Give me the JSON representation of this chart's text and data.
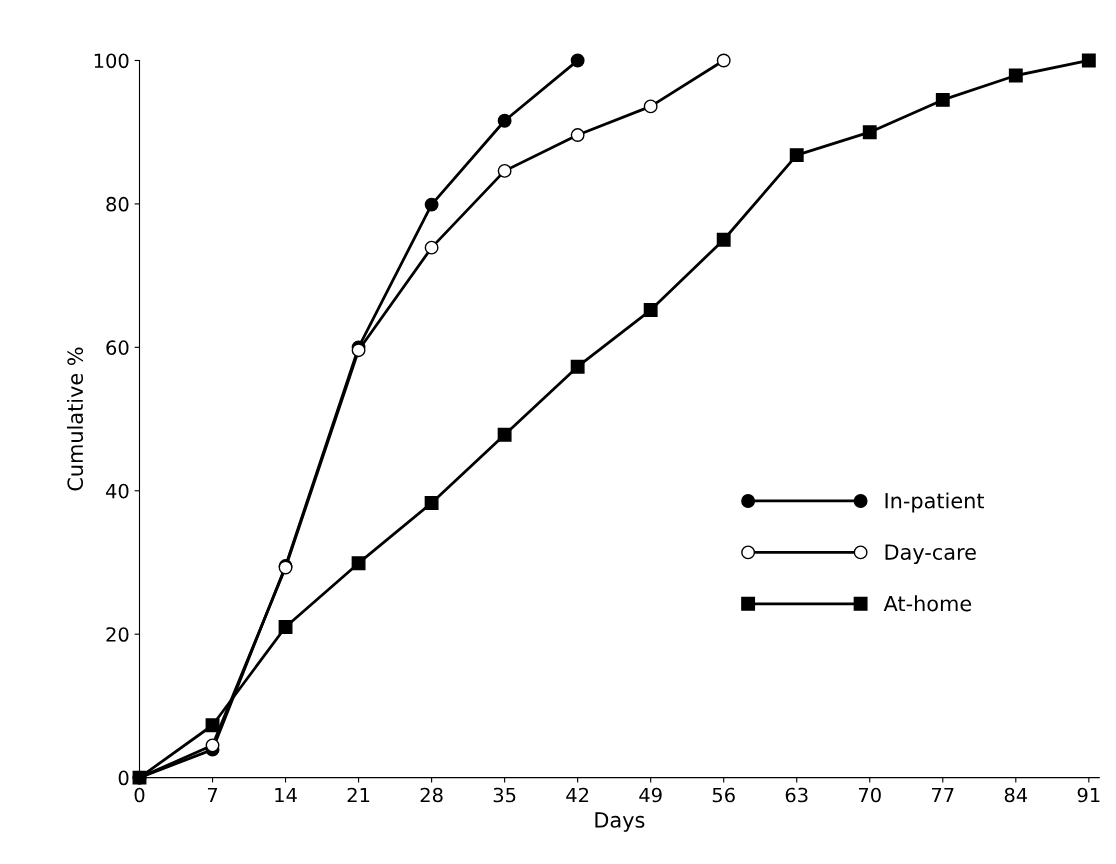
{
  "chart_data": {
    "type": "line",
    "xlabel": "Days",
    "ylabel": "Cumulative %",
    "xlim": [
      0,
      92
    ],
    "ylim": [
      0,
      100
    ],
    "xticks": [
      0,
      7,
      14,
      21,
      28,
      35,
      42,
      49,
      56,
      63,
      70,
      77,
      84,
      91
    ],
    "yticks": [
      0,
      20,
      40,
      60,
      80,
      100
    ],
    "grid": false,
    "legend": "lower right",
    "series": [
      {
        "name": "In-patient",
        "color": "#000000",
        "marker": "circle",
        "x": [
          0,
          7,
          14,
          21,
          28,
          35,
          42
        ],
        "values": [
          0,
          3.9,
          29.5,
          60,
          79.9,
          91.6,
          100
        ]
      },
      {
        "name": "Day-care",
        "color": "#ffffff",
        "marker": "circle",
        "x": [
          0,
          7,
          14,
          21,
          28,
          35,
          42,
          49,
          56
        ],
        "values": [
          0,
          4.5,
          29.3,
          59.6,
          73.9,
          84.6,
          89.6,
          93.6,
          100
        ]
      },
      {
        "name": "At-home",
        "color": "#000000",
        "marker": "square",
        "x": [
          0,
          7,
          14,
          21,
          28,
          35,
          42,
          49,
          56,
          63,
          70,
          77,
          84,
          91
        ],
        "values": [
          0,
          7.3,
          21,
          29.9,
          38.3,
          47.8,
          57.3,
          65.2,
          75,
          86.8,
          90,
          94.5,
          97.9,
          100
        ]
      }
    ]
  }
}
